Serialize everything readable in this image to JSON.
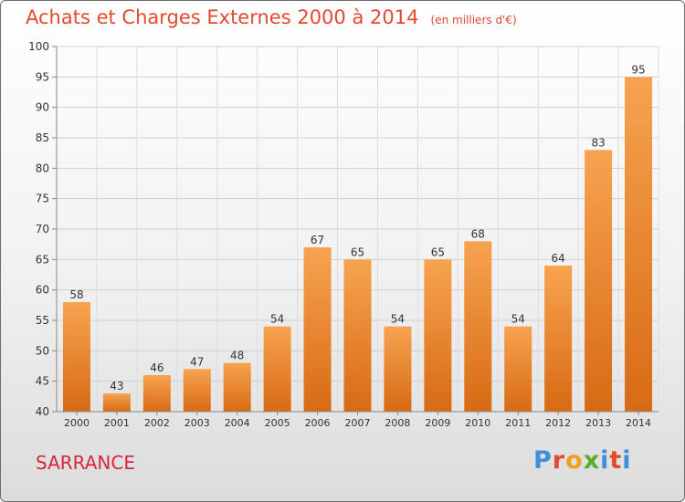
{
  "header": {
    "title": "Achats et Charges Externes 2000 à 2014",
    "subtitle": "(en milliers d'€)"
  },
  "town": "SARRANCE",
  "brand": {
    "letters": [
      "P",
      "r",
      "o",
      "x",
      "i",
      "t",
      "i"
    ],
    "colors": [
      "#3d8fd6",
      "#e04a2e",
      "#f0a020",
      "#5aab2e",
      "#3d8fd6",
      "#e04a2e",
      "#3d8fd6"
    ]
  },
  "chart_data": {
    "type": "bar",
    "categories": [
      "2000",
      "2001",
      "2002",
      "2003",
      "2004",
      "2005",
      "2006",
      "2007",
      "2008",
      "2009",
      "2010",
      "2011",
      "2012",
      "2013",
      "2014"
    ],
    "values": [
      58,
      43,
      46,
      47,
      48,
      54,
      67,
      65,
      54,
      65,
      68,
      54,
      64,
      83,
      95
    ],
    "ylim": [
      40,
      100
    ],
    "yticks": [
      40,
      45,
      50,
      55,
      60,
      65,
      70,
      75,
      80,
      85,
      90,
      95,
      100
    ],
    "grid": true,
    "bar_color_top": "#f7a350",
    "bar_color_bottom": "#d86a14",
    "text_color": "#333333"
  }
}
